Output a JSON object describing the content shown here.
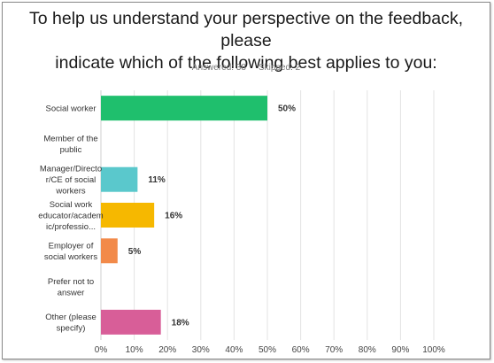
{
  "question": {
    "title_line1": "To help us understand your perspective on the feedback, please",
    "title_line2": "indicate which of the following best applies to you:"
  },
  "stats": {
    "answered_label": "Answered: 38",
    "skipped_label": "Skipped: 2"
  },
  "chart_data": {
    "type": "bar",
    "orientation": "horizontal",
    "categories": [
      [
        "Social worker"
      ],
      [
        "Member of the",
        "public"
      ],
      [
        "Manager/Directo",
        "r/CE of social",
        "workers"
      ],
      [
        "Social work",
        "educator/academ",
        "ic/professio..."
      ],
      [
        "Employer of",
        "social workers"
      ],
      [
        "Prefer not to",
        "answer"
      ],
      [
        "Other (please",
        "specify)"
      ]
    ],
    "values": [
      50,
      0,
      11,
      16,
      5,
      0,
      18
    ],
    "value_labels": [
      "50%",
      "",
      "11%",
      "16%",
      "5%",
      "",
      "18%"
    ],
    "colors": [
      "#1fbf6d",
      "#1fbf6d",
      "#5ac8cc",
      "#f6b800",
      "#f28a4a",
      "#888888",
      "#d85e98"
    ],
    "xlim": [
      0,
      100
    ],
    "x_ticks": [
      "0%",
      "10%",
      "20%",
      "30%",
      "40%",
      "50%",
      "60%",
      "70%",
      "80%",
      "90%",
      "100%"
    ],
    "grid": "vertical"
  }
}
